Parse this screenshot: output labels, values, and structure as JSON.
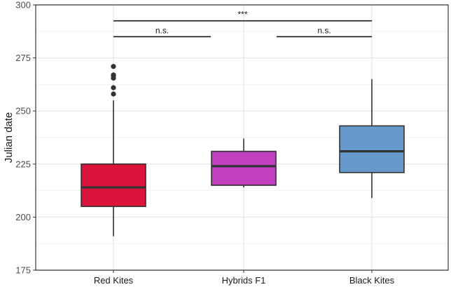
{
  "chart_data": {
    "type": "boxplot",
    "title": "",
    "xlabel": "",
    "ylabel": "Julian date",
    "ylim": [
      175,
      300
    ],
    "yticks": [
      175,
      200,
      225,
      250,
      275,
      300
    ],
    "grid": true,
    "categories": [
      "Red Kites",
      "Hybrids F1",
      "Black Kites"
    ],
    "boxes": [
      {
        "category": "Red Kites",
        "whisker_low": 191,
        "q1": 205,
        "median": 214,
        "q3": 225,
        "whisker_high": 255,
        "outliers": [
          258,
          261,
          265.5,
          266.5,
          267,
          271
        ],
        "color": "#dc143c"
      },
      {
        "category": "Hybrids F1",
        "whisker_low": 214,
        "q1": 215,
        "median": 224,
        "q3": 231,
        "whisker_high": 237,
        "outliers": [],
        "color": "#c040c0"
      },
      {
        "category": "Black Kites",
        "whisker_low": 209,
        "q1": 221,
        "median": 231,
        "q3": 243,
        "whisker_high": 265,
        "outliers": [],
        "color": "#6699cc"
      }
    ],
    "significance": [
      {
        "from": "Red Kites",
        "to": "Black Kites",
        "y": 292.5,
        "label": "***"
      },
      {
        "from": "Red Kites",
        "to": "Hybrids F1",
        "y": 285,
        "label": "n.s."
      },
      {
        "from": "Hybrids F1",
        "to": "Black Kites",
        "y": 285,
        "label": "n.s."
      }
    ]
  }
}
